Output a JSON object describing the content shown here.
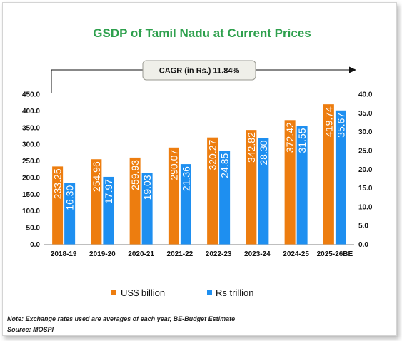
{
  "chart_data": {
    "type": "bar",
    "title": "GSDP of Tamil Nadu at Current Prices",
    "categories": [
      "2018-19",
      "2019-20",
      "2020-21",
      "2021-22",
      "2022-23",
      "2023-24",
      "2024-25",
      "2025-26BE"
    ],
    "series": [
      {
        "name": "US$ billion",
        "axis": "left",
        "color": "#ed7d0f",
        "values": [
          233.25,
          254.96,
          259.93,
          290.07,
          320.27,
          342.82,
          372.42,
          419.74
        ],
        "labels": [
          "233.25",
          "254.96",
          "259.93",
          "290.07",
          "320.27",
          "342.82",
          "372.42",
          "419.74"
        ]
      },
      {
        "name": "Rs trillion",
        "axis": "right",
        "color": "#1e8ff0",
        "values": [
          16.3,
          17.97,
          19.03,
          21.36,
          24.85,
          28.3,
          31.55,
          35.67
        ],
        "labels": [
          "16.30",
          "17.97",
          "19.03",
          "21.36",
          "24.85",
          "28.30",
          "31.55",
          "35.67"
        ]
      }
    ],
    "y_left": {
      "lim": [
        0,
        450
      ],
      "ticks": [
        "0.0",
        "50.0",
        "100.0",
        "150.0",
        "200.0",
        "250.0",
        "300.0",
        "350.0",
        "400.0",
        "450.0"
      ]
    },
    "y_right": {
      "lim": [
        0,
        40
      ],
      "ticks": [
        "0.0",
        "5.0",
        "10.0",
        "15.0",
        "20.0",
        "25.0",
        "30.0",
        "35.0",
        "40.0"
      ]
    },
    "annotation": "CAGR (in Rs.) 11.84%",
    "grid": false,
    "legend_position": "bottom"
  },
  "notes": {
    "note": "Note: Exchange rates used are averages of each year, BE-Budget Estimate",
    "source": "Source: MOSPI"
  },
  "colors": {
    "title": "#2ea04d",
    "usd": "#ed7d0f",
    "inr": "#1e8ff0",
    "cagr_box": "#efefe9"
  }
}
